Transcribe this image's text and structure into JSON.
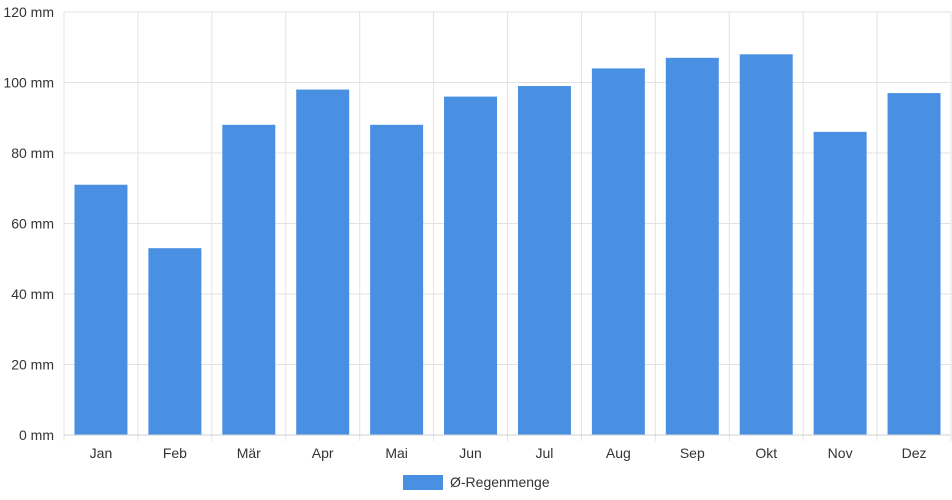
{
  "chart_data": {
    "type": "bar",
    "categories": [
      "Jan",
      "Feb",
      "Mär",
      "Apr",
      "Mai",
      "Jun",
      "Jul",
      "Aug",
      "Sep",
      "Okt",
      "Nov",
      "Dez"
    ],
    "series": [
      {
        "name": "Ø-Regenmenge",
        "values": [
          71,
          53,
          88,
          98,
          88,
          96,
          99,
          104,
          107,
          108,
          86,
          97
        ],
        "color": "#4a90e2"
      }
    ],
    "ylim": [
      0,
      120
    ],
    "yticks": [
      0,
      20,
      40,
      60,
      80,
      100,
      120
    ],
    "y_unit_suffix": " mm",
    "grid": true,
    "legend_position": "bottom-center"
  }
}
